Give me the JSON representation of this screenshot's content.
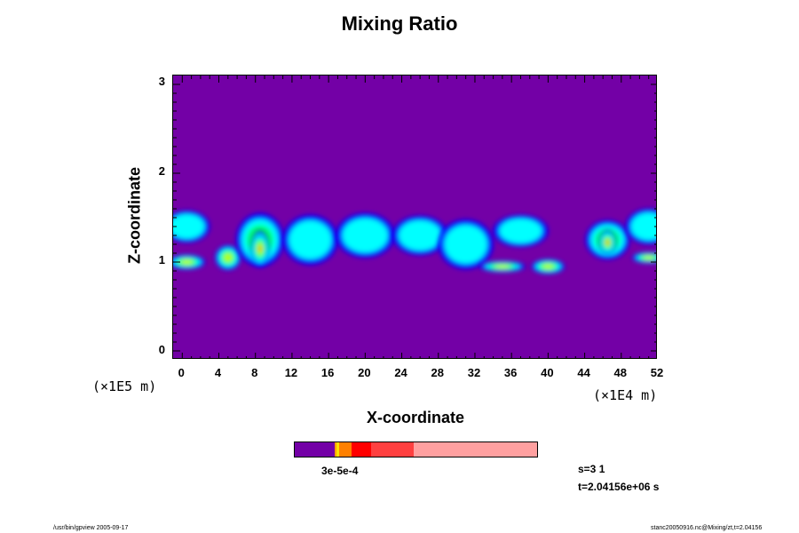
{
  "chart_data": {
    "type": "heatmap",
    "title": "Mixing Ratio",
    "xlabel": "X-coordinate",
    "ylabel": "Z-coordinate",
    "x_scale_label": "(×1E4 m)",
    "y_scale_label": "(×1E5 m)",
    "xlim": [
      -1,
      52
    ],
    "ylim": [
      -0.1,
      3.1
    ],
    "x_ticks": [
      "0",
      "4",
      "8",
      "12",
      "16",
      "20",
      "24",
      "28",
      "32",
      "36",
      "40",
      "44",
      "48",
      "52"
    ],
    "y_ticks": [
      "0",
      "1",
      "2",
      "3"
    ],
    "background_color": "#7300a6",
    "band_center_z": 1.25,
    "features": [
      {
        "x": 0.5,
        "z": 1.0,
        "rx": 2.0,
        "rz": 0.08,
        "level": 4
      },
      {
        "x": 0.5,
        "z": 1.4,
        "rx": 2.5,
        "rz": 0.18,
        "level": 2
      },
      {
        "x": 5,
        "z": 1.05,
        "rx": 1.4,
        "rz": 0.14,
        "level": 4
      },
      {
        "x": 8.5,
        "z": 1.25,
        "rx": 2.6,
        "rz": 0.3,
        "level": 3
      },
      {
        "x": 8.5,
        "z": 1.15,
        "rx": 1.0,
        "rz": 0.2,
        "level": 5
      },
      {
        "x": 14,
        "z": 1.25,
        "rx": 3.0,
        "rz": 0.28,
        "level": 2
      },
      {
        "x": 20,
        "z": 1.3,
        "rx": 3.2,
        "rz": 0.25,
        "level": 2
      },
      {
        "x": 26,
        "z": 1.3,
        "rx": 3.0,
        "rz": 0.22,
        "level": 2
      },
      {
        "x": 31,
        "z": 1.2,
        "rx": 3.0,
        "rz": 0.28,
        "level": 2
      },
      {
        "x": 35,
        "z": 0.95,
        "rx": 2.5,
        "rz": 0.06,
        "level": 4
      },
      {
        "x": 40,
        "z": 0.95,
        "rx": 1.8,
        "rz": 0.08,
        "level": 4
      },
      {
        "x": 37,
        "z": 1.35,
        "rx": 3.0,
        "rz": 0.18,
        "level": 2
      },
      {
        "x": 46.5,
        "z": 1.25,
        "rx": 2.4,
        "rz": 0.22,
        "level": 3
      },
      {
        "x": 46.5,
        "z": 1.22,
        "rx": 0.9,
        "rz": 0.14,
        "level": 5
      },
      {
        "x": 51,
        "z": 1.05,
        "rx": 1.8,
        "rz": 0.06,
        "level": 4
      },
      {
        "x": 51,
        "z": 1.4,
        "rx": 2.5,
        "rz": 0.2,
        "level": 2
      }
    ],
    "colorbar": {
      "segments": [
        {
          "color": "#7300a6",
          "weight": 16
        },
        {
          "color": "#ffa000",
          "weight": 1
        },
        {
          "color": "#ffe000",
          "weight": 1
        },
        {
          "color": "#ff8000",
          "weight": 5
        },
        {
          "color": "#ff0000",
          "weight": 8
        },
        {
          "color": "#ff4040",
          "weight": 17
        },
        {
          "color": "#ffa0a0",
          "weight": 50
        }
      ],
      "tick_labels_overlapping": "3e-5e-4"
    },
    "level_colors": [
      "#0000ff",
      "#00ffff",
      "#00ff60",
      "#c0ff00",
      "#ff0000"
    ],
    "info": {
      "s_label": "s=3 1",
      "t_label": "t=2.04156e+06 s"
    }
  },
  "footer": {
    "left": "/usr/bin/gpview 2005-09-17",
    "right": "stanc20050916.nc@Mixing/zt,t=2.04156"
  }
}
